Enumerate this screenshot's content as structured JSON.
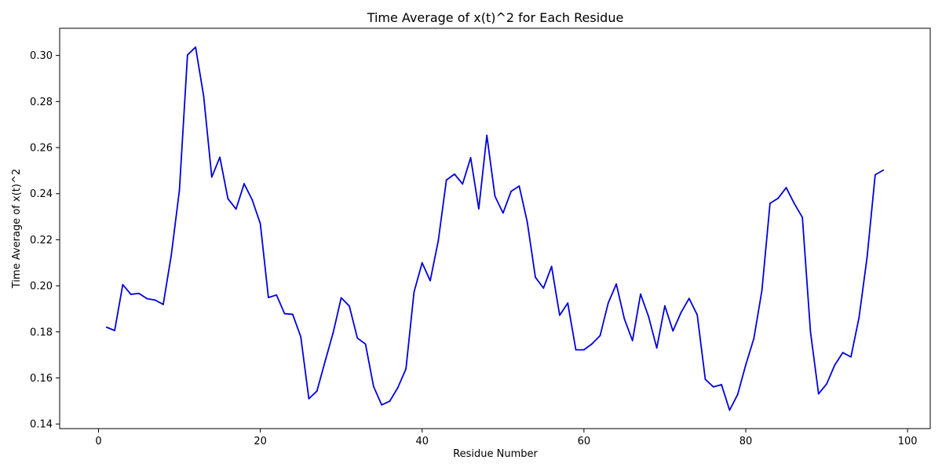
{
  "chart_data": {
    "type": "line",
    "title": "Time Average of x(t)^2 for Each Residue",
    "xlabel": "Residue Number",
    "ylabel": "Time Average of x(t)^2",
    "xlim": [
      -4.8,
      102.8
    ],
    "ylim": [
      0.138,
      0.3118
    ],
    "xticks": [
      0,
      20,
      40,
      60,
      80,
      100
    ],
    "xtick_labels": [
      "0",
      "20",
      "40",
      "60",
      "80",
      "100"
    ],
    "yticks": [
      0.14,
      0.16,
      0.18,
      0.2,
      0.22,
      0.24,
      0.26,
      0.28,
      0.3
    ],
    "ytick_labels": [
      "0.14",
      "0.16",
      "0.18",
      "0.20",
      "0.22",
      "0.24",
      "0.26",
      "0.28",
      "0.30"
    ],
    "grid": false,
    "legend": "none",
    "series": [
      {
        "color": "#0000dd",
        "x": [
          1,
          2,
          3,
          4,
          5,
          6,
          7,
          8,
          9,
          10,
          11,
          12,
          13,
          14,
          15,
          16,
          17,
          18,
          19,
          20,
          21,
          22,
          23,
          24,
          25,
          26,
          27,
          28,
          29,
          30,
          31,
          32,
          33,
          34,
          35,
          36,
          37,
          38,
          39,
          40,
          41,
          42,
          43,
          44,
          45,
          46,
          47,
          48,
          49,
          50,
          51,
          52,
          53,
          54,
          55,
          56,
          57,
          58,
          59,
          60,
          61,
          62,
          63,
          64,
          65,
          66,
          67,
          68,
          69,
          70,
          71,
          72,
          73,
          74,
          75,
          76,
          77,
          78,
          79,
          80,
          81,
          82,
          83,
          84,
          85,
          86,
          87,
          88,
          89,
          90,
          91,
          92,
          93,
          94,
          95,
          96,
          97
        ],
        "values": [
          0.182,
          0.1806,
          0.2005,
          0.1963,
          0.1967,
          0.1944,
          0.1938,
          0.1919,
          0.2134,
          0.2414,
          0.3002,
          0.3036,
          0.2823,
          0.2472,
          0.2558,
          0.2378,
          0.2333,
          0.2443,
          0.2373,
          0.227,
          0.1949,
          0.196,
          0.1879,
          0.1876,
          0.1779,
          0.151,
          0.1543,
          0.1671,
          0.1796,
          0.1948,
          0.1912,
          0.1773,
          0.1747,
          0.1563,
          0.1483,
          0.1499,
          0.1558,
          0.1639,
          0.1973,
          0.21,
          0.2022,
          0.2196,
          0.2459,
          0.2485,
          0.2442,
          0.2556,
          0.2334,
          0.2653,
          0.2389,
          0.2316,
          0.241,
          0.2433,
          0.2276,
          0.2037,
          0.199,
          0.2084,
          0.1872,
          0.1925,
          0.1722,
          0.1722,
          0.1748,
          0.1784,
          0.1925,
          0.2008,
          0.1856,
          0.1762,
          0.1964,
          0.1865,
          0.173,
          0.1913,
          0.1804,
          0.1884,
          0.1945,
          0.1874,
          0.1594,
          0.1561,
          0.1571,
          0.146,
          0.1528,
          0.1657,
          0.1771,
          0.198,
          0.2358,
          0.238,
          0.2426,
          0.2357,
          0.2297,
          0.18,
          0.1531,
          0.1574,
          0.1656,
          0.171,
          0.1691,
          0.1862,
          0.2125,
          0.2482,
          0.2502
        ]
      }
    ]
  }
}
